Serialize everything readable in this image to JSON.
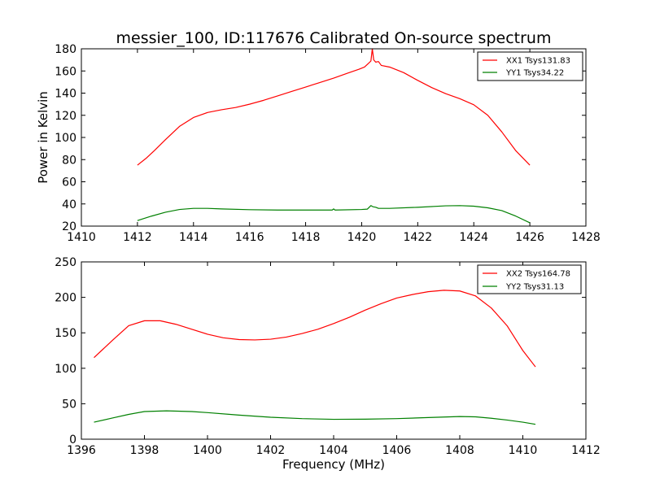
{
  "chart_data": [
    {
      "type": "line",
      "title": "messier_100, ID:117676 Calibrated On-source spectrum",
      "xlabel": "",
      "ylabel": "Power in Kelvin",
      "xlim": [
        1410,
        1428
      ],
      "ylim": [
        20,
        180
      ],
      "xticks": [
        1410,
        1412,
        1414,
        1416,
        1418,
        1420,
        1422,
        1424,
        1426,
        1428
      ],
      "yticks": [
        20,
        40,
        60,
        80,
        100,
        120,
        140,
        160,
        180
      ],
      "legend_position": "top-right",
      "series": [
        {
          "name": "XX1 Tsys131.83",
          "color": "#ff0000",
          "points": [
            [
              1412,
              75
            ],
            [
              1412.3,
              81
            ],
            [
              1412.6,
              88
            ],
            [
              1413,
              98
            ],
            [
              1413.5,
              110
            ],
            [
              1414,
              118
            ],
            [
              1414.5,
              122.5
            ],
            [
              1415,
              125
            ],
            [
              1415.5,
              127
            ],
            [
              1416,
              130
            ],
            [
              1416.5,
              133.5
            ],
            [
              1417,
              137.5
            ],
            [
              1417.5,
              141.5
            ],
            [
              1418,
              145.5
            ],
            [
              1418.5,
              149.5
            ],
            [
              1419,
              153.5
            ],
            [
              1419.5,
              158
            ],
            [
              1419.9,
              161.5
            ],
            [
              1420.1,
              163.5
            ],
            [
              1420.25,
              167
            ],
            [
              1420.33,
              169
            ],
            [
              1420.38,
              180
            ],
            [
              1420.43,
              170
            ],
            [
              1420.5,
              168
            ],
            [
              1420.6,
              168.5
            ],
            [
              1420.7,
              165
            ],
            [
              1421,
              163.5
            ],
            [
              1421.5,
              158.5
            ],
            [
              1422,
              151.5
            ],
            [
              1422.5,
              145
            ],
            [
              1423,
              139.5
            ],
            [
              1423.5,
              135
            ],
            [
              1424,
              129.5
            ],
            [
              1424.5,
              120
            ],
            [
              1425,
              105
            ],
            [
              1425.5,
              88
            ],
            [
              1426,
              75
            ]
          ]
        },
        {
          "name": "YY1 Tsys34.22",
          "color": "#008000",
          "points": [
            [
              1412,
              25
            ],
            [
              1412.5,
              29
            ],
            [
              1413,
              32.5
            ],
            [
              1413.5,
              35
            ],
            [
              1414,
              36
            ],
            [
              1414.5,
              36
            ],
            [
              1415,
              35.5
            ],
            [
              1416,
              34.8
            ],
            [
              1417,
              34.5
            ],
            [
              1418,
              34.5
            ],
            [
              1418.95,
              34.5
            ],
            [
              1419,
              35.5
            ],
            [
              1419.05,
              34.5
            ],
            [
              1420,
              35
            ],
            [
              1420.2,
              35.3
            ],
            [
              1420.33,
              38.5
            ],
            [
              1420.4,
              37.5
            ],
            [
              1420.5,
              37
            ],
            [
              1420.6,
              36
            ],
            [
              1421,
              36
            ],
            [
              1422,
              37
            ],
            [
              1423,
              38.3
            ],
            [
              1423.5,
              38.5
            ],
            [
              1424,
              38
            ],
            [
              1424.5,
              36.5
            ],
            [
              1425,
              34
            ],
            [
              1425.5,
              29
            ],
            [
              1426,
              23
            ]
          ]
        }
      ]
    },
    {
      "type": "line",
      "title": "",
      "xlabel": "Frequency (MHz)",
      "ylabel": "",
      "xlim": [
        1396,
        1412
      ],
      "ylim": [
        0,
        250
      ],
      "xticks": [
        1396,
        1398,
        1400,
        1402,
        1404,
        1406,
        1408,
        1410,
        1412
      ],
      "yticks": [
        0,
        50,
        100,
        150,
        200,
        250
      ],
      "legend_position": "top-right",
      "series": [
        {
          "name": "XX2 Tsys164.78",
          "color": "#ff0000",
          "points": [
            [
              1396.4,
              115
            ],
            [
              1397,
              140
            ],
            [
              1397.5,
              160
            ],
            [
              1398,
              167
            ],
            [
              1398.5,
              167
            ],
            [
              1399,
              162
            ],
            [
              1399.5,
              155
            ],
            [
              1400,
              148
            ],
            [
              1400.5,
              143
            ],
            [
              1401,
              140.5
            ],
            [
              1401.5,
              140
            ],
            [
              1402,
              141
            ],
            [
              1402.5,
              144
            ],
            [
              1403,
              149
            ],
            [
              1403.5,
              155
            ],
            [
              1404,
              163
            ],
            [
              1404.5,
              172
            ],
            [
              1405,
              182
            ],
            [
              1405.5,
              191
            ],
            [
              1406,
              199
            ],
            [
              1406.5,
              204
            ],
            [
              1407,
              208
            ],
            [
              1407.5,
              210
            ],
            [
              1408,
              209
            ],
            [
              1408.5,
              202
            ],
            [
              1409,
              185
            ],
            [
              1409.5,
              160
            ],
            [
              1410,
              125
            ],
            [
              1410.4,
              102
            ]
          ]
        },
        {
          "name": "YY2 Tsys31.13",
          "color": "#008000",
          "points": [
            [
              1396.4,
              24
            ],
            [
              1397,
              30
            ],
            [
              1397.5,
              35
            ],
            [
              1398,
              39
            ],
            [
              1398.7,
              40
            ],
            [
              1399.5,
              39
            ],
            [
              1400,
              37.5
            ],
            [
              1401,
              34
            ],
            [
              1402,
              31
            ],
            [
              1403,
              29
            ],
            [
              1404,
              28
            ],
            [
              1405,
              28.2
            ],
            [
              1406,
              29
            ],
            [
              1407,
              30.5
            ],
            [
              1408,
              32
            ],
            [
              1408.5,
              31.5
            ],
            [
              1409,
              29.5
            ],
            [
              1409.5,
              27
            ],
            [
              1410,
              24
            ],
            [
              1410.4,
              21
            ]
          ]
        }
      ]
    }
  ]
}
